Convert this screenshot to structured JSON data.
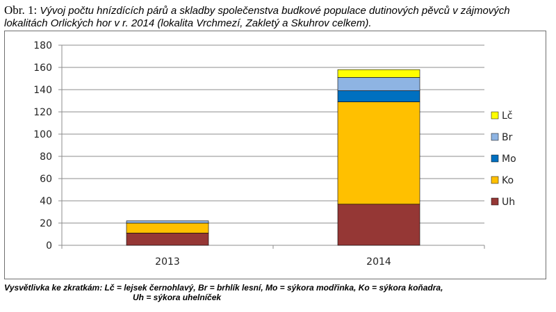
{
  "caption": {
    "lead": "Obr. 1:",
    "text": "Vývoj počtu hnízdících párů a skladby společenstva budkové populace dutinových pěvců v zájmových lokalitách Orlických hor v r. 2014 (lokalita Vrchmezí, Zakletý a Skuhrov celkem)."
  },
  "chart_data": {
    "type": "bar",
    "stacked": true,
    "title": "",
    "xlabel": "",
    "ylabel": "",
    "categories": [
      "2013",
      "2014"
    ],
    "ylim": [
      0,
      180
    ],
    "yticks": [
      0,
      20,
      40,
      60,
      80,
      100,
      120,
      140,
      160,
      180
    ],
    "grid": true,
    "legend_position": "right",
    "series": [
      {
        "name": "Uh",
        "color": "#953735",
        "values": [
          11,
          37
        ]
      },
      {
        "name": "Ko",
        "color": "#ffc000",
        "values": [
          9,
          92
        ]
      },
      {
        "name": "Mo",
        "color": "#0070c0",
        "values": [
          0,
          10
        ]
      },
      {
        "name": "Br",
        "color": "#8eb4e3",
        "values": [
          2,
          12
        ]
      },
      {
        "name": "Lč",
        "color": "#ffff00",
        "values": [
          0,
          7
        ]
      }
    ]
  },
  "note": {
    "line1": "Vysvětlivka ke zkratkám: Lč = lejsek černohlavý, Br = brhlík lesní, Mo = sýkora modřinka, Ko = sýkora koňadra,",
    "line2": "Uh = sýkora uhelníček"
  }
}
